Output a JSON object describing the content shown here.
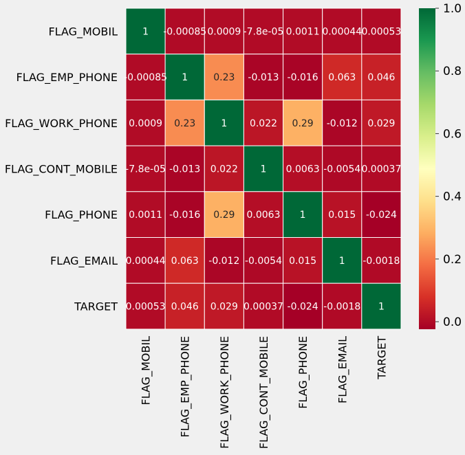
{
  "chart_data": {
    "type": "heatmap",
    "title": "",
    "xlabel": "",
    "ylabel": "",
    "rows": [
      "FLAG_MOBIL",
      "FLAG_EMP_PHONE",
      "FLAG_WORK_PHONE",
      "FLAG_CONT_MOBILE",
      "FLAG_PHONE",
      "FLAG_EMAIL",
      "TARGET"
    ],
    "columns": [
      "FLAG_MOBIL",
      "FLAG_EMP_PHONE",
      "FLAG_WORK_PHONE",
      "FLAG_CONT_MOBILE",
      "FLAG_PHONE",
      "FLAG_EMAIL",
      "TARGET"
    ],
    "values": [
      [
        1,
        -0.00085,
        0.0009,
        -7.8e-05,
        0.0011,
        0.00044,
        0.00053
      ],
      [
        -0.00085,
        1,
        0.23,
        -0.013,
        -0.016,
        0.063,
        0.046
      ],
      [
        0.0009,
        0.23,
        1,
        0.022,
        0.29,
        -0.012,
        0.029
      ],
      [
        -7.8e-05,
        -0.013,
        0.022,
        1,
        0.0063,
        -0.0054,
        0.00037
      ],
      [
        0.0011,
        -0.016,
        0.29,
        0.0063,
        1,
        0.015,
        -0.024
      ],
      [
        0.00044,
        0.063,
        -0.012,
        -0.0054,
        0.015,
        1,
        -0.0018
      ],
      [
        0.00053,
        0.046,
        0.029,
        0.00037,
        -0.024,
        -0.0018,
        1
      ]
    ],
    "annotations": [
      [
        "1",
        "-0.00085",
        "0.0009",
        "-7.8e-05",
        "0.0011",
        "0.00044",
        "0.00053"
      ],
      [
        "-0.00085",
        "1",
        "0.23",
        "-0.013",
        "-0.016",
        "0.063",
        "0.046"
      ],
      [
        "0.0009",
        "0.23",
        "1",
        "0.022",
        "0.29",
        "-0.012",
        "0.029"
      ],
      [
        "-7.8e-05",
        "-0.013",
        "0.022",
        "1",
        "0.0063",
        "-0.0054",
        "0.00037"
      ],
      [
        "0.0011",
        "-0.016",
        "0.29",
        "0.0063",
        "1",
        "0.015",
        "-0.024"
      ],
      [
        "0.00044",
        "0.063",
        "-0.012",
        "-0.0054",
        "0.015",
        "1",
        "-0.0018"
      ],
      [
        "0.00053",
        "0.046",
        "0.029",
        "0.00037",
        "-0.024",
        "-0.0018",
        "1"
      ]
    ],
    "vmin": -0.024,
    "vmax": 1,
    "colormap": "RdYlGn",
    "colorbar": {
      "ticks": [
        0.0,
        0.2,
        0.4,
        0.6,
        0.8,
        1.0
      ],
      "tick_labels": [
        "0.0",
        "0.2",
        "0.4",
        "0.6",
        "0.8",
        "1.0"
      ]
    },
    "grid": false,
    "background_color": "#f0f0f0",
    "cell_border_color": "#ffffff"
  }
}
